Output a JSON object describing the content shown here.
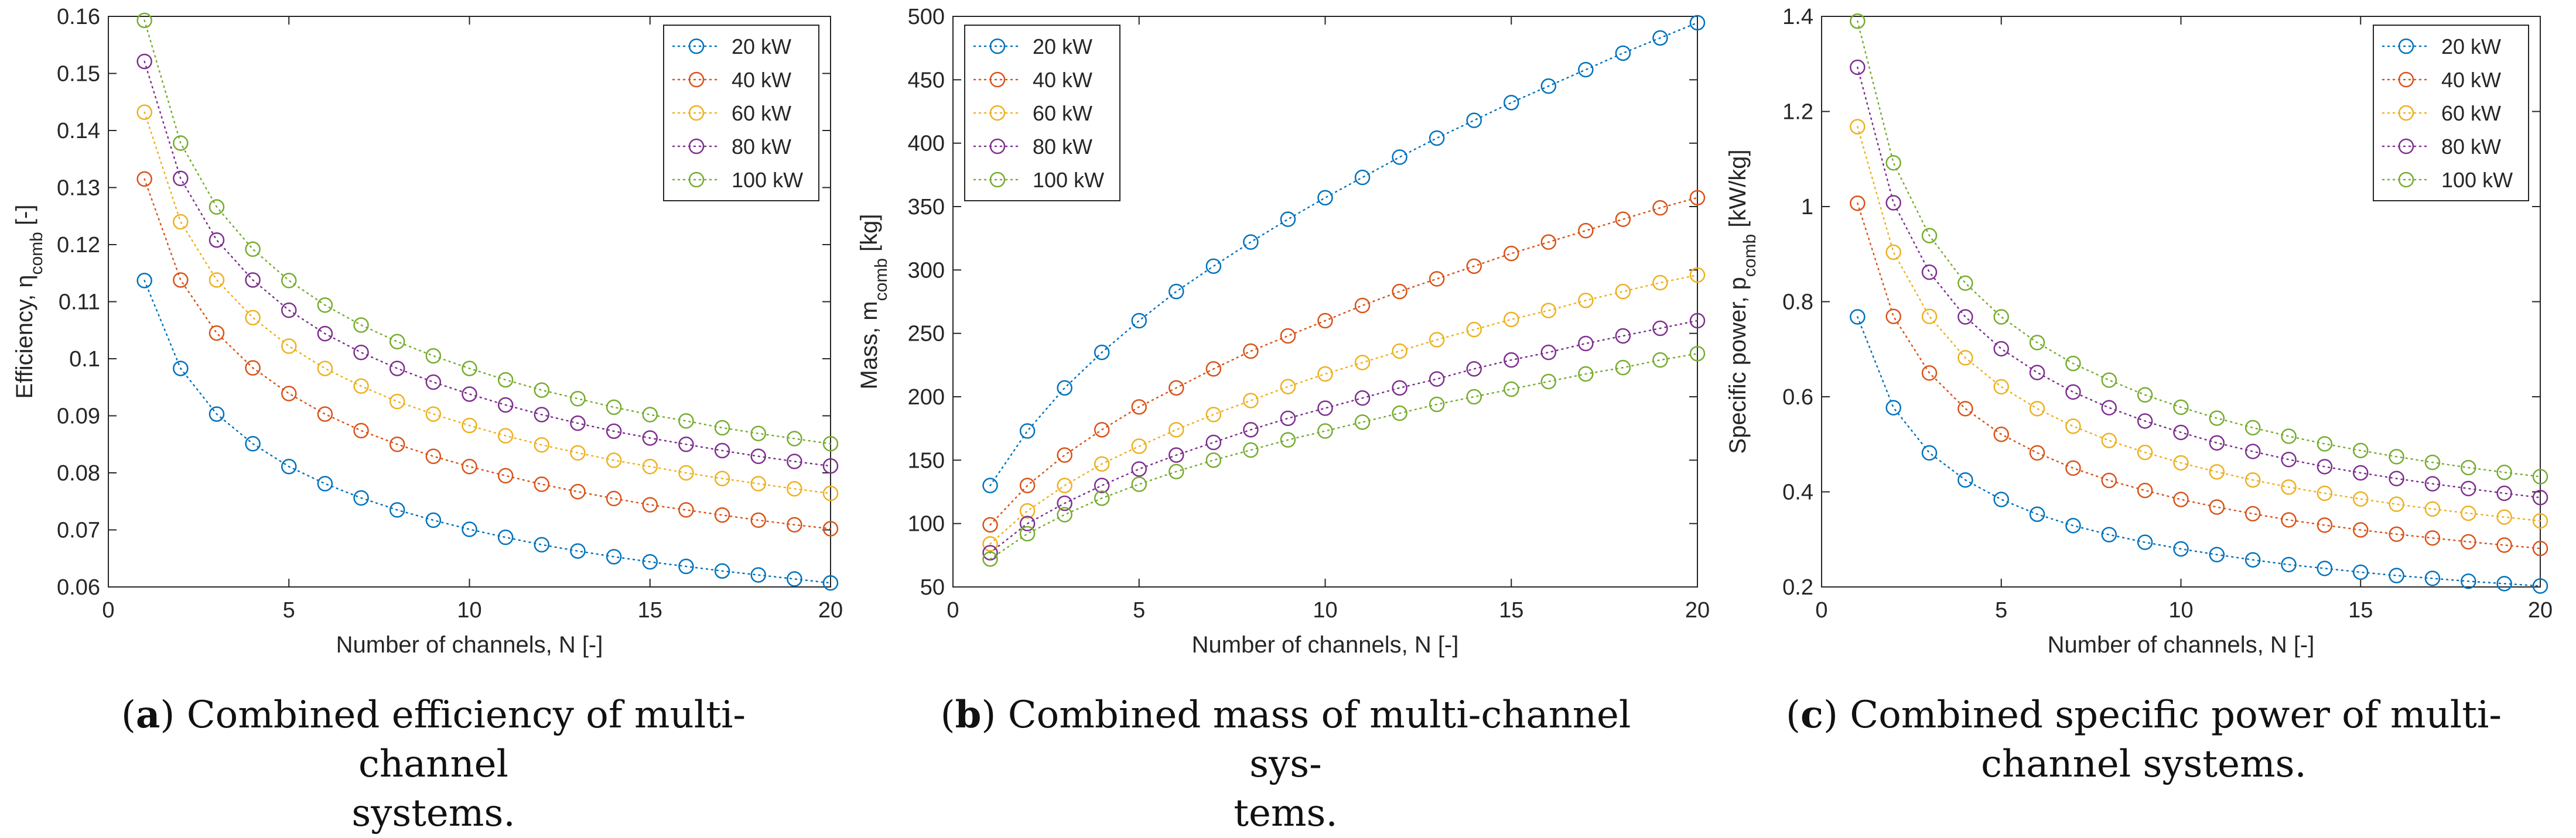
{
  "colors": {
    "20 kW": "#0072BD",
    "40 kW": "#D95319",
    "60 kW": "#EDB120",
    "80 kW": "#7E2F8E",
    "100 kW": "#77AC30",
    "axis": "#262626",
    "grid": "#e6e6e6"
  },
  "chart_data": [
    {
      "type": "line",
      "marker": "open-circle",
      "line_style": "dotted",
      "xlabel": "Number of channels, N [-]",
      "ylabel": "Efficiency, ηcomb [-]",
      "ylabel_main": "Efficiency, η",
      "ylabel_sub": "comb",
      "ylabel_tail": " [-]",
      "xlim": [
        0,
        20
      ],
      "ylim": [
        0.06,
        0.16
      ],
      "xticks": [
        0,
        5,
        10,
        15,
        20
      ],
      "yticks": [
        0.06,
        0.07,
        0.08,
        0.09,
        0.1,
        0.11,
        0.12,
        0.13,
        0.14,
        0.15,
        0.16
      ],
      "ytick_labels": [
        "0.06",
        "0.07",
        "0.08",
        "0.09",
        "0.1",
        "0.11",
        "0.12",
        "0.13",
        "0.14",
        "0.15",
        "0.16"
      ],
      "legend_position": "top-right",
      "x": [
        1,
        2,
        3,
        4,
        5,
        6,
        7,
        8,
        9,
        10,
        11,
        12,
        13,
        14,
        15,
        16,
        17,
        18,
        19,
        20
      ],
      "series": [
        {
          "name": "20 kW",
          "values": [
            0.1137,
            0.0983,
            0.0903,
            0.0851,
            0.0811,
            0.0781,
            0.0756,
            0.0735,
            0.0717,
            0.0701,
            0.0687,
            0.0674,
            0.0663,
            0.0653,
            0.0644,
            0.0636,
            0.0628,
            0.0621,
            0.0614,
            0.0607
          ]
        },
        {
          "name": "40 kW",
          "values": [
            0.1315,
            0.1138,
            0.1045,
            0.0984,
            0.0939,
            0.0903,
            0.0874,
            0.085,
            0.0829,
            0.0811,
            0.0795,
            0.078,
            0.0767,
            0.0755,
            0.0744,
            0.0735,
            0.0726,
            0.0717,
            0.0709,
            0.0702
          ]
        },
        {
          "name": "60 kW",
          "values": [
            0.1432,
            0.124,
            0.1138,
            0.1072,
            0.1022,
            0.0983,
            0.0952,
            0.0925,
            0.0903,
            0.0883,
            0.0865,
            0.0849,
            0.0835,
            0.0822,
            0.0811,
            0.08,
            0.079,
            0.0781,
            0.0772,
            0.0764
          ]
        },
        {
          "name": "80 kW",
          "values": [
            0.1521,
            0.1316,
            0.1208,
            0.1138,
            0.1085,
            0.1044,
            0.1011,
            0.0983,
            0.0959,
            0.0938,
            0.0919,
            0.0902,
            0.0887,
            0.0873,
            0.0861,
            0.085,
            0.0839,
            0.0829,
            0.082,
            0.0812
          ]
        },
        {
          "name": "100 kW",
          "values": [
            0.1593,
            0.1378,
            0.1266,
            0.1192,
            0.1137,
            0.1094,
            0.1059,
            0.103,
            0.1005,
            0.0983,
            0.0963,
            0.0945,
            0.093,
            0.0915,
            0.0902,
            0.0891,
            0.0879,
            0.0869,
            0.086,
            0.0851
          ]
        }
      ]
    },
    {
      "type": "line",
      "marker": "open-circle",
      "line_style": "dotted",
      "xlabel": "Number of channels, N [-]",
      "ylabel": "Mass, mcomb [kg]",
      "ylabel_main": "Mass, m",
      "ylabel_sub": "comb",
      "ylabel_tail": " [kg]",
      "xlim": [
        0,
        20
      ],
      "ylim": [
        50,
        500
      ],
      "xticks": [
        0,
        5,
        10,
        15,
        20
      ],
      "yticks": [
        50,
        100,
        150,
        200,
        250,
        300,
        350,
        400,
        450,
        500
      ],
      "ytick_labels": [
        "50",
        "100",
        "150",
        "200",
        "250",
        "300",
        "350",
        "400",
        "450",
        "500"
      ],
      "legend_position": "top-left",
      "x": [
        1,
        2,
        3,
        4,
        5,
        6,
        7,
        8,
        9,
        10,
        11,
        12,
        13,
        14,
        15,
        16,
        17,
        18,
        19,
        20
      ],
      "series": [
        {
          "name": "20 kW",
          "values": [
            130,
            173,
            207,
            235,
            260,
            283,
            303,
            322,
            340,
            357,
            373,
            389,
            404,
            418,
            432,
            445,
            458,
            471,
            483,
            495
          ]
        },
        {
          "name": "40 kW",
          "values": [
            99,
            130,
            154,
            174,
            192,
            207,
            222,
            236,
            248,
            260,
            272,
            283,
            293,
            303,
            313,
            322,
            331,
            340,
            349,
            357
          ]
        },
        {
          "name": "60 kW",
          "values": [
            84,
            110,
            130,
            147,
            161,
            174,
            186,
            197,
            208,
            218,
            227,
            236,
            245,
            253,
            261,
            268,
            276,
            283,
            290,
            296
          ]
        },
        {
          "name": "80 kW",
          "values": [
            77,
            100,
            116,
            130,
            143,
            154,
            164,
            174,
            183,
            191,
            199,
            207,
            214,
            222,
            229,
            235,
            242,
            248,
            254,
            260
          ]
        },
        {
          "name": "100 kW",
          "values": [
            72,
            92,
            107,
            120,
            131,
            141,
            150,
            158,
            166,
            173,
            180,
            187,
            194,
            200,
            206,
            212,
            218,
            223,
            229,
            234
          ]
        }
      ]
    },
    {
      "type": "line",
      "marker": "open-circle",
      "line_style": "dotted",
      "xlabel": "Number of channels, N [-]",
      "ylabel": "Specific power, pcomb [kW/kg]",
      "ylabel_main": "Specific power, p",
      "ylabel_sub": "comb",
      "ylabel_tail": " [kW/kg]",
      "xlim": [
        0,
        20
      ],
      "ylim": [
        0.2,
        1.4
      ],
      "xticks": [
        0,
        5,
        10,
        15,
        20
      ],
      "yticks": [
        0.2,
        0.4,
        0.6,
        0.8,
        1.0,
        1.2,
        1.4
      ],
      "ytick_labels": [
        "0.2",
        "0.4",
        "0.6",
        "0.8",
        "1",
        "1.2",
        "1.4"
      ],
      "legend_position": "top-right",
      "x": [
        1,
        2,
        3,
        4,
        5,
        6,
        7,
        8,
        9,
        10,
        11,
        12,
        13,
        14,
        15,
        16,
        17,
        18,
        19,
        20
      ],
      "series": [
        {
          "name": "20 kW",
          "values": [
            0.768,
            0.577,
            0.482,
            0.425,
            0.384,
            0.353,
            0.329,
            0.31,
            0.294,
            0.28,
            0.268,
            0.257,
            0.247,
            0.239,
            0.231,
            0.224,
            0.218,
            0.212,
            0.207,
            0.202
          ]
        },
        {
          "name": "40 kW",
          "values": [
            1.007,
            0.769,
            0.65,
            0.575,
            0.521,
            0.482,
            0.45,
            0.424,
            0.403,
            0.384,
            0.368,
            0.354,
            0.341,
            0.33,
            0.32,
            0.311,
            0.303,
            0.295,
            0.288,
            0.281
          ]
        },
        {
          "name": "60 kW",
          "values": [
            1.168,
            0.904,
            0.769,
            0.682,
            0.621,
            0.575,
            0.538,
            0.508,
            0.483,
            0.461,
            0.442,
            0.425,
            0.41,
            0.397,
            0.385,
            0.374,
            0.364,
            0.355,
            0.347,
            0.339
          ]
        },
        {
          "name": "80 kW",
          "values": [
            1.293,
            1.008,
            0.862,
            0.768,
            0.701,
            0.651,
            0.61,
            0.577,
            0.549,
            0.525,
            0.503,
            0.485,
            0.468,
            0.453,
            0.44,
            0.428,
            0.417,
            0.407,
            0.397,
            0.388
          ]
        },
        {
          "name": "100 kW",
          "values": [
            1.39,
            1.092,
            0.939,
            0.839,
            0.768,
            0.714,
            0.67,
            0.635,
            0.604,
            0.578,
            0.555,
            0.535,
            0.517,
            0.501,
            0.487,
            0.474,
            0.462,
            0.451,
            0.441,
            0.432
          ]
        }
      ]
    }
  ],
  "captions": [
    {
      "letter": "a",
      "open": "(",
      "close": ")",
      "line1": " Combined efficiency of multi-channel",
      "line2": "systems."
    },
    {
      "letter": "b",
      "open": "(",
      "close": ")",
      "line1": " Combined mass of multi-channel sys-",
      "line2": "tems."
    },
    {
      "letter": "c",
      "open": "(",
      "close": ")",
      "line1": " Combined specific power of multi-",
      "line2": "channel systems."
    }
  ]
}
